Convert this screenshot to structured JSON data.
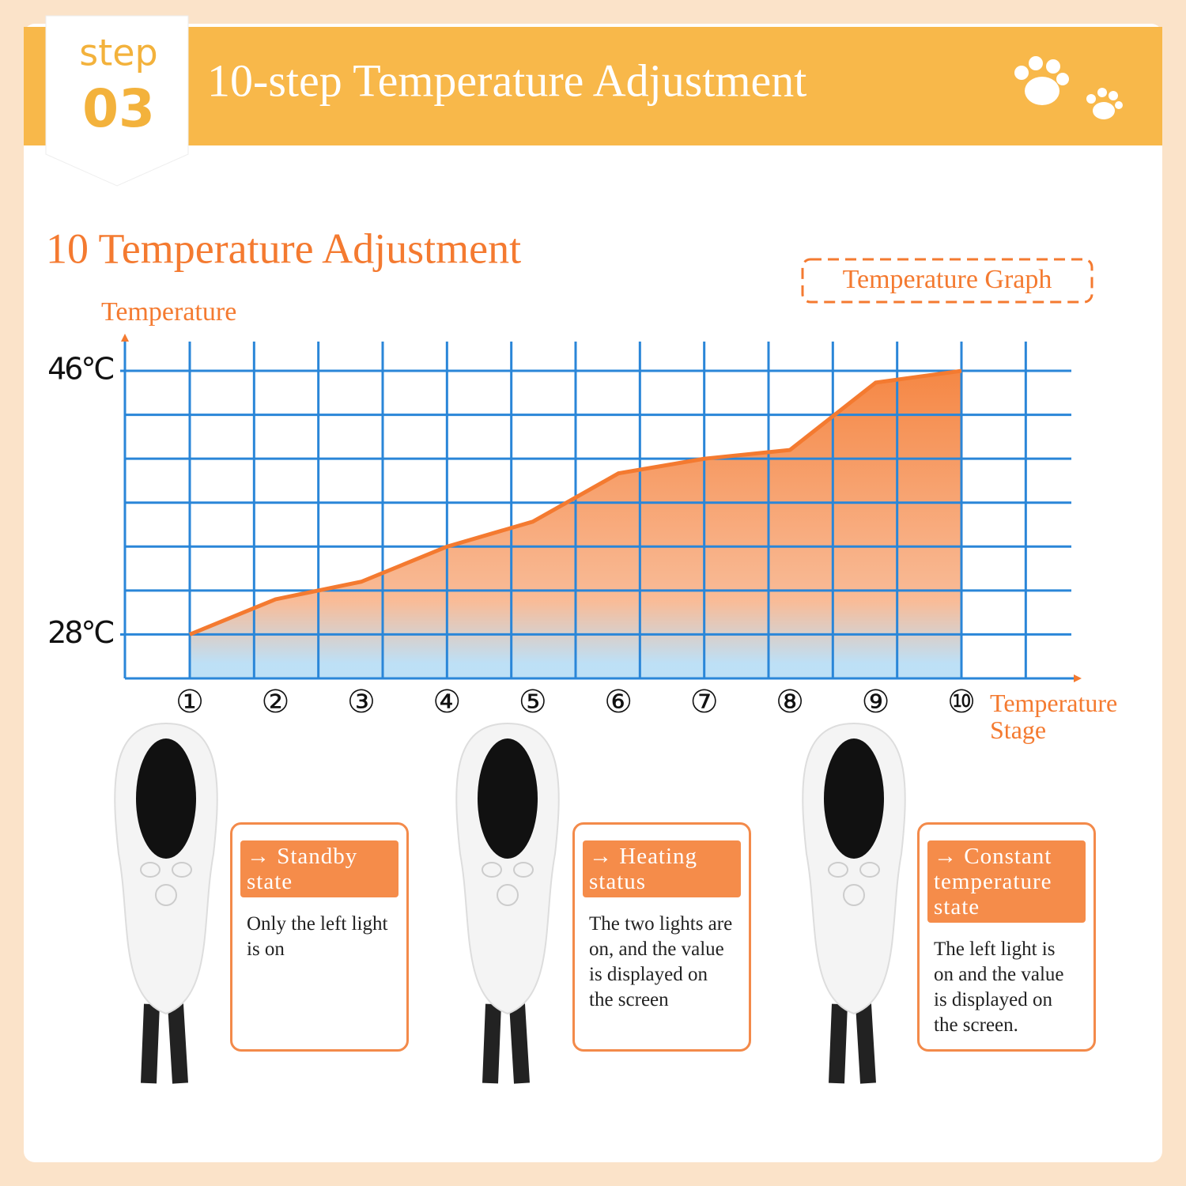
{
  "header": {
    "step": "step",
    "number": "03",
    "title": "10-step Temperature Adjustment"
  },
  "chart_data": {
    "type": "area",
    "title": "10 Temperature Adjustment",
    "annotation": "Temperature Graph",
    "y_label": "Temperature",
    "x_label": "Temperature Stage",
    "categories": [
      "①",
      "②",
      "③",
      "④",
      "⑤",
      "⑥",
      "⑦",
      "⑧",
      "⑨",
      "⑩"
    ],
    "values": [
      28,
      30.4,
      31.6,
      34,
      35.7,
      39,
      40,
      40.6,
      45.2,
      46
    ],
    "color": "#f47a30",
    "ylim": [
      25,
      48
    ],
    "yticks": [
      {
        "value": 46,
        "label": "46°C"
      },
      {
        "value": 28,
        "label": "28°C"
      }
    ],
    "ygrid": [
      28,
      31,
      34,
      37,
      40,
      43,
      46
    ],
    "grid": true
  },
  "states": [
    {
      "title": "→ Standby state",
      "text": "Only the left light is on"
    },
    {
      "title": "→ Heating status",
      "text": "The two lights are on, and the value is displayed on the screen"
    },
    {
      "title": "→ Constant temperature state",
      "text": "The left light is on and the value is displayed on the screen."
    }
  ]
}
